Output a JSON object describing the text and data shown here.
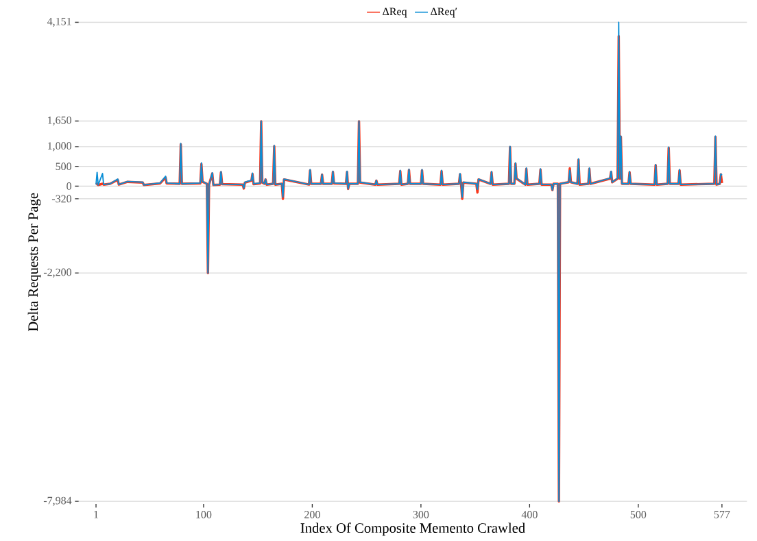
{
  "chart_data": {
    "type": "line",
    "xlabel": "Index Of Composite Memento Crawled",
    "ylabel": "Delta Requests Per Page",
    "x": [
      1,
      2,
      3,
      7,
      8,
      14,
      21,
      22,
      30,
      44,
      45,
      60,
      65,
      66,
      78,
      79,
      80,
      97,
      98,
      99,
      103,
      104,
      105,
      108,
      109,
      115,
      116,
      117,
      136,
      137,
      138,
      144,
      145,
      146,
      152,
      153,
      154,
      156,
      157,
      158,
      164,
      165,
      166,
      172,
      173,
      174,
      197,
      198,
      199,
      208,
      209,
      210,
      218,
      219,
      220,
      231,
      232,
      233,
      234,
      242,
      243,
      244,
      258,
      259,
      260,
      280,
      281,
      282,
      288,
      289,
      290,
      300,
      301,
      302,
      318,
      319,
      320,
      335,
      336,
      337,
      338,
      339,
      351,
      352,
      353,
      364,
      365,
      366,
      381,
      382,
      383,
      386,
      387,
      388,
      396,
      397,
      398,
      409,
      410,
      411,
      420,
      421,
      422,
      426,
      427,
      428,
      436,
      437,
      438,
      444,
      445,
      446,
      454,
      455,
      456,
      474,
      475,
      476,
      481,
      482,
      483,
      484,
      485,
      491,
      492,
      493,
      515,
      516,
      517,
      527,
      528,
      529,
      537,
      538,
      539,
      570,
      571,
      572,
      575,
      576,
      577
    ],
    "series": [
      {
        "name": "ΔReq",
        "color": "#f8371c",
        "values": [
          40,
          60,
          30,
          60,
          40,
          60,
          160,
          40,
          110,
          90,
          30,
          70,
          220,
          70,
          60,
          1060,
          60,
          70,
          560,
          110,
          60,
          -2200,
          40,
          320,
          30,
          40,
          350,
          50,
          40,
          -60,
          90,
          140,
          310,
          50,
          70,
          1640,
          90,
          60,
          170,
          40,
          60,
          1010,
          40,
          60,
          -320,
          170,
          40,
          400,
          60,
          60,
          290,
          60,
          60,
          360,
          70,
          60,
          360,
          -70,
          60,
          60,
          1640,
          90,
          40,
          140,
          40,
          60,
          380,
          40,
          60,
          410,
          60,
          60,
          400,
          60,
          40,
          380,
          40,
          60,
          300,
          40,
          -320,
          90,
          60,
          -160,
          170,
          60,
          350,
          40,
          60,
          990,
          60,
          60,
          570,
          190,
          40,
          440,
          40,
          60,
          420,
          40,
          40,
          -100,
          60,
          60,
          -7984,
          60,
          100,
          450,
          100,
          60,
          670,
          40,
          60,
          440,
          60,
          190,
          360,
          100,
          190,
          3800,
          190,
          1250,
          60,
          60,
          350,
          60,
          40,
          530,
          40,
          60,
          970,
          60,
          60,
          400,
          40,
          60,
          1250,
          40,
          60,
          300,
          80
        ]
      },
      {
        "name": "ΔReq′",
        "color": "#0a8ed6",
        "values": [
          40,
          350,
          30,
          320,
          40,
          60,
          180,
          40,
          120,
          100,
          30,
          80,
          250,
          80,
          60,
          1080,
          60,
          80,
          590,
          120,
          60,
          -2200,
          40,
          340,
          30,
          40,
          370,
          50,
          40,
          -50,
          100,
          150,
          330,
          60,
          80,
          1650,
          100,
          60,
          180,
          40,
          60,
          1030,
          40,
          60,
          -280,
          180,
          40,
          420,
          60,
          60,
          300,
          60,
          60,
          380,
          80,
          60,
          380,
          -70,
          60,
          60,
          1650,
          100,
          40,
          150,
          40,
          60,
          400,
          40,
          60,
          430,
          60,
          60,
          420,
          60,
          40,
          400,
          40,
          60,
          320,
          40,
          -280,
          100,
          60,
          -80,
          180,
          60,
          370,
          40,
          60,
          1010,
          60,
          60,
          590,
          200,
          40,
          460,
          40,
          60,
          440,
          40,
          40,
          -100,
          60,
          60,
          -7984,
          60,
          100,
          400,
          100,
          60,
          690,
          40,
          60,
          460,
          60,
          200,
          380,
          100,
          200,
          4151,
          200,
          1270,
          60,
          60,
          370,
          60,
          40,
          550,
          40,
          60,
          990,
          60,
          60,
          420,
          40,
          60,
          1270,
          40,
          60,
          310,
          280
        ]
      }
    ],
    "xlim": [
      -15,
      600
    ],
    "ylim": [
      -8050,
      4200
    ],
    "xticks": [
      1,
      100,
      200,
      300,
      400,
      500,
      577
    ],
    "yticks": [
      {
        "value": -7984,
        "label": "-7,984"
      },
      {
        "value": -2200,
        "label": "-2,200"
      },
      {
        "value": -320,
        "label": "-320"
      },
      {
        "value": 0,
        "label": "0"
      },
      {
        "value": 500,
        "label": "500"
      },
      {
        "value": 1000,
        "label": "1,000"
      },
      {
        "value": 1650,
        "label": "1,650"
      },
      {
        "value": 4151,
        "label": "4,151"
      }
    ],
    "grid": "y",
    "legend": "top",
    "marker": "none",
    "line_style": "solid"
  }
}
